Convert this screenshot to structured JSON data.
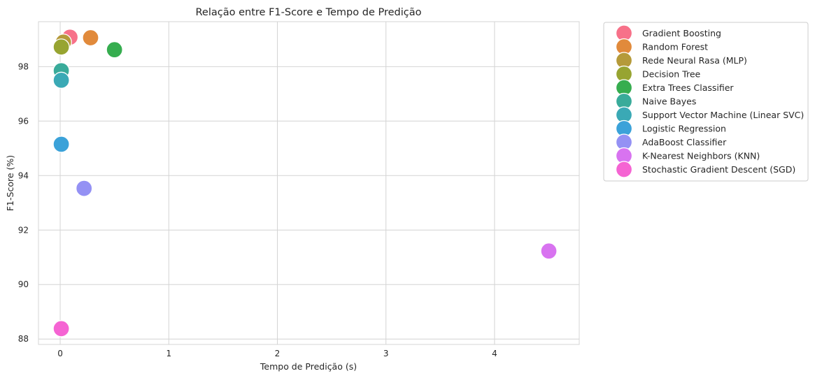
{
  "chart_data": {
    "type": "scatter",
    "title": "Relação entre F1-Score e Tempo de Predição",
    "xlabel": "Tempo de Predição (s)",
    "ylabel": "F1-Score (%)",
    "xlim": [
      -0.2,
      4.78
    ],
    "ylim": [
      87.8,
      99.65
    ],
    "xticks": [
      0,
      1,
      2,
      3,
      4
    ],
    "yticks": [
      88,
      90,
      92,
      94,
      96,
      98
    ],
    "grid": true,
    "legend_position": "outside-right-top",
    "series": [
      {
        "name": "Gradient Boosting",
        "color": "#f77189",
        "x": 0.09,
        "y": 99.08
      },
      {
        "name": "Random Forest",
        "color": "#e18a3b",
        "x": 0.28,
        "y": 99.06
      },
      {
        "name": "Rede Neural Rasa (MLP)",
        "color": "#b59a3a",
        "x": 0.03,
        "y": 98.9
      },
      {
        "name": "Decision Tree",
        "color": "#97a431",
        "x": 0.01,
        "y": 98.72
      },
      {
        "name": "Extra Trees Classifier",
        "color": "#36ad4f",
        "x": 0.5,
        "y": 98.62
      },
      {
        "name": "Naive Bayes",
        "color": "#39ab9a",
        "x": 0.01,
        "y": 97.85
      },
      {
        "name": "Support Vector Machine (Linear SVC)",
        "color": "#3aa9b5",
        "x": 0.01,
        "y": 97.5
      },
      {
        "name": "Logistic Regression",
        "color": "#3ba2d9",
        "x": 0.01,
        "y": 95.15
      },
      {
        "name": "AdaBoost Classifier",
        "color": "#9491f4",
        "x": 0.22,
        "y": 93.53
      },
      {
        "name": "K-Nearest Neighbors (KNN)",
        "color": "#d873f0",
        "x": 4.5,
        "y": 91.23
      },
      {
        "name": "Stochastic Gradient Descent (SGD)",
        "color": "#f564d3",
        "x": 0.01,
        "y": 88.38
      }
    ]
  }
}
